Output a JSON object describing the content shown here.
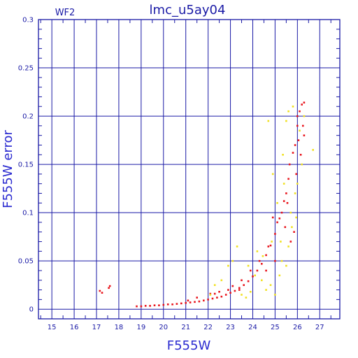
{
  "chart_data": {
    "type": "scatter",
    "title": "lmc_u5ay04",
    "subtitle": "WF2",
    "xlabel": "F555W",
    "ylabel": "F555W error",
    "xlim": [
      14.4,
      27.9
    ],
    "ylim": [
      -0.01,
      0.3
    ],
    "x_major_ticks": [
      15,
      16,
      17,
      18,
      19,
      20,
      21,
      22,
      23,
      24,
      25,
      26,
      27
    ],
    "x_tick_labels": [
      "15",
      "16",
      "17",
      "18",
      "19",
      "20",
      "21",
      "22",
      "23",
      "24",
      "25",
      "26",
      "27"
    ],
    "y_major_ticks": [
      0,
      0.05,
      0.1,
      0.15,
      0.2,
      0.25,
      0.3
    ],
    "y_tick_labels": [
      "0",
      "0.05",
      "0.1",
      "0.15",
      "0.2",
      "0.25",
      "0.3"
    ],
    "grid": true,
    "colors": {
      "axes": "#1a1aa6",
      "label": "#2a2ad0",
      "series_main": "#e8141c",
      "series_secondary": "#f0e020"
    },
    "series": [
      {
        "role": "main",
        "color": "#e8141c",
        "points": [
          [
            17.15,
            0.019
          ],
          [
            17.25,
            0.017
          ],
          [
            17.55,
            0.022
          ],
          [
            17.6,
            0.024
          ],
          [
            18.8,
            0.003
          ],
          [
            19.0,
            0.003
          ],
          [
            19.2,
            0.0035
          ],
          [
            19.4,
            0.0035
          ],
          [
            19.6,
            0.004
          ],
          [
            19.8,
            0.004
          ],
          [
            20.0,
            0.0045
          ],
          [
            20.2,
            0.005
          ],
          [
            20.4,
            0.005
          ],
          [
            20.6,
            0.0055
          ],
          [
            20.8,
            0.006
          ],
          [
            21.0,
            0.0065
          ],
          [
            21.2,
            0.007
          ],
          [
            21.4,
            0.0075
          ],
          [
            21.6,
            0.008
          ],
          [
            21.8,
            0.009
          ],
          [
            22.0,
            0.01
          ],
          [
            22.2,
            0.011
          ],
          [
            22.4,
            0.012
          ],
          [
            22.6,
            0.013
          ],
          [
            22.8,
            0.015
          ],
          [
            23.0,
            0.017
          ],
          [
            23.2,
            0.019
          ],
          [
            23.4,
            0.022
          ],
          [
            23.6,
            0.025
          ],
          [
            23.8,
            0.029
          ],
          [
            24.0,
            0.034
          ],
          [
            24.2,
            0.04
          ],
          [
            24.4,
            0.047
          ],
          [
            24.6,
            0.056
          ],
          [
            24.8,
            0.066
          ],
          [
            25.0,
            0.078
          ],
          [
            25.2,
            0.094
          ],
          [
            25.4,
            0.112
          ],
          [
            25.6,
            0.135
          ],
          [
            25.8,
            0.162
          ],
          [
            26.0,
            0.19
          ],
          [
            26.1,
            0.205
          ],
          [
            26.2,
            0.212
          ],
          [
            26.3,
            0.214
          ],
          [
            21.5,
            0.012
          ],
          [
            22.1,
            0.016
          ],
          [
            22.5,
            0.018
          ],
          [
            23.1,
            0.024
          ],
          [
            23.5,
            0.03
          ],
          [
            23.9,
            0.04
          ],
          [
            24.3,
            0.05
          ],
          [
            24.7,
            0.065
          ],
          [
            25.1,
            0.09
          ],
          [
            25.5,
            0.12
          ],
          [
            25.9,
            0.17
          ],
          [
            26.0,
            0.2
          ],
          [
            26.25,
            0.19
          ],
          [
            26.3,
            0.18
          ],
          [
            25.85,
            0.08
          ],
          [
            25.7,
            0.07
          ],
          [
            25.55,
            0.11
          ],
          [
            24.9,
            0.095
          ],
          [
            24.6,
            0.04
          ],
          [
            25.0,
            0.05
          ],
          [
            25.3,
            0.1
          ],
          [
            23.4,
            0.02
          ],
          [
            22.9,
            0.02
          ],
          [
            22.3,
            0.016
          ],
          [
            21.1,
            0.009
          ],
          [
            25.95,
            0.14
          ],
          [
            26.15,
            0.16
          ],
          [
            26.05,
            0.175
          ],
          [
            25.65,
            0.15
          ],
          [
            25.45,
            0.085
          ]
        ]
      },
      {
        "role": "secondary",
        "color": "#f0e020",
        "points": [
          [
            22.3,
            0.025
          ],
          [
            22.6,
            0.03
          ],
          [
            22.9,
            0.045
          ],
          [
            23.1,
            0.05
          ],
          [
            23.3,
            0.065
          ],
          [
            23.5,
            0.015
          ],
          [
            23.7,
            0.012
          ],
          [
            23.9,
            0.018
          ],
          [
            24.1,
            0.035
          ],
          [
            24.2,
            0.06
          ],
          [
            24.4,
            0.03
          ],
          [
            24.6,
            0.02
          ],
          [
            24.8,
            0.025
          ],
          [
            25.0,
            0.015
          ],
          [
            25.2,
            0.035
          ],
          [
            25.3,
            0.05
          ],
          [
            25.5,
            0.045
          ],
          [
            25.6,
            0.065
          ],
          [
            25.1,
            0.11
          ],
          [
            25.4,
            0.13
          ],
          [
            25.7,
            0.1
          ],
          [
            25.9,
            0.12
          ],
          [
            26.0,
            0.13
          ],
          [
            26.2,
            0.15
          ],
          [
            26.3,
            0.2
          ],
          [
            25.8,
            0.21
          ],
          [
            25.6,
            0.205
          ],
          [
            25.5,
            0.195
          ],
          [
            24.7,
            0.195
          ],
          [
            26.1,
            0.185
          ],
          [
            25.35,
            0.16
          ],
          [
            24.9,
            0.14
          ],
          [
            25.75,
            0.085
          ],
          [
            25.95,
            0.095
          ],
          [
            26.7,
            0.165
          ],
          [
            25.25,
            0.07
          ],
          [
            24.85,
            0.07
          ],
          [
            24.45,
            0.055
          ],
          [
            23.8,
            0.045
          ],
          [
            22.1,
            0.015
          ]
        ]
      }
    ]
  }
}
